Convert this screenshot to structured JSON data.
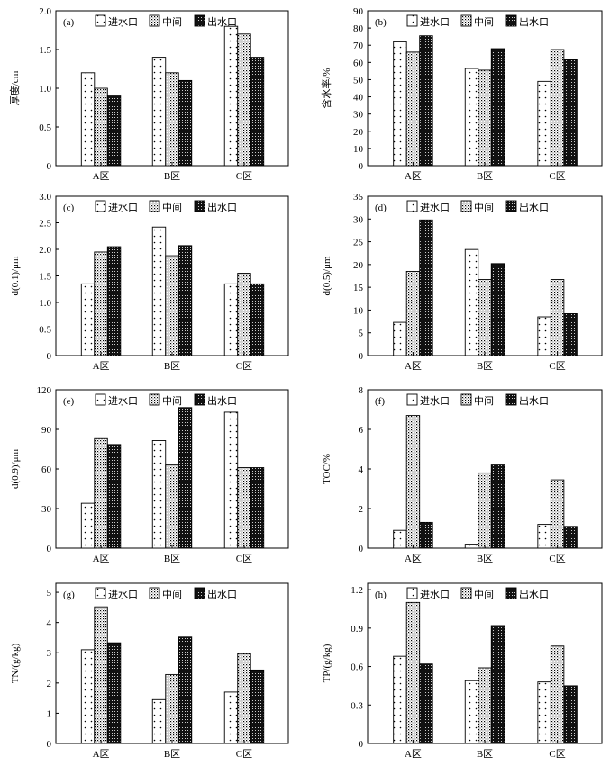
{
  "legend": [
    "进水口",
    "中间",
    "出水口"
  ],
  "chart_data": [
    {
      "type": "bar",
      "panel": "(a)",
      "ylabel": "厚度/cm",
      "categories": [
        "A区",
        "B区",
        "C区"
      ],
      "ylim": [
        0,
        2.0
      ],
      "yticks": [
        "0",
        "0.5",
        "1.0",
        "1.5",
        "2.0"
      ],
      "legend_position": "top",
      "series": [
        {
          "name": "进水口",
          "values": [
            1.2,
            1.4,
            1.8
          ]
        },
        {
          "name": "中间",
          "values": [
            1.0,
            1.2,
            1.7
          ]
        },
        {
          "name": "出水口",
          "values": [
            0.9,
            1.1,
            1.4
          ]
        }
      ]
    },
    {
      "type": "bar",
      "panel": "(b)",
      "ylabel": "含水率/%",
      "categories": [
        "A区",
        "B区",
        "C区"
      ],
      "ylim": [
        0,
        90
      ],
      "yticks": [
        "0",
        "10",
        "20",
        "30",
        "40",
        "50",
        "60",
        "70",
        "80",
        "90"
      ],
      "legend_position": "top-right",
      "series": [
        {
          "name": "进水口",
          "values": [
            72,
            56.5,
            49
          ]
        },
        {
          "name": "中间",
          "values": [
            66,
            55.5,
            67.5
          ]
        },
        {
          "name": "出水口",
          "values": [
            75.5,
            68,
            61.5
          ]
        }
      ]
    },
    {
      "type": "bar",
      "panel": "(c)",
      "ylabel": "d(0.1)/μm",
      "categories": [
        "A区",
        "B区",
        "C区"
      ],
      "ylim": [
        0,
        3.0
      ],
      "yticks": [
        "0",
        "0.5",
        "1.0",
        "1.5",
        "2.0",
        "2.5",
        "3.0"
      ],
      "legend_position": "top",
      "series": [
        {
          "name": "进水口",
          "values": [
            1.35,
            2.42,
            1.35
          ]
        },
        {
          "name": "中间",
          "values": [
            1.95,
            1.88,
            1.55
          ]
        },
        {
          "name": "出水口",
          "values": [
            2.05,
            2.07,
            1.35
          ]
        }
      ]
    },
    {
      "type": "bar",
      "panel": "(d)",
      "ylabel": "d(0.5)/μm",
      "categories": [
        "A区",
        "B区",
        "C区"
      ],
      "ylim": [
        0,
        35
      ],
      "yticks": [
        "0",
        "5",
        "10",
        "15",
        "20",
        "25",
        "30",
        "35"
      ],
      "legend_position": "top-right",
      "series": [
        {
          "name": "进水口",
          "values": [
            7.3,
            23.3,
            8.5
          ]
        },
        {
          "name": "中间",
          "values": [
            18.5,
            16.7,
            16.7
          ]
        },
        {
          "name": "出水口",
          "values": [
            29.8,
            20.2,
            9.2
          ]
        }
      ]
    },
    {
      "type": "bar",
      "panel": "(e)",
      "ylabel": "d(0.9)/μm",
      "categories": [
        "A区",
        "B区",
        "C区"
      ],
      "ylim": [
        0,
        120
      ],
      "yticks": [
        "0",
        "30",
        "60",
        "90",
        "120"
      ],
      "legend_position": "top",
      "series": [
        {
          "name": "进水口",
          "values": [
            34,
            81.5,
            103
          ]
        },
        {
          "name": "中间",
          "values": [
            83,
            63,
            61
          ]
        },
        {
          "name": "出水口",
          "values": [
            78.5,
            106.5,
            61
          ]
        }
      ]
    },
    {
      "type": "bar",
      "panel": "(f)",
      "ylabel": "TOC/%",
      "categories": [
        "A区",
        "B区",
        "C区"
      ],
      "ylim": [
        0,
        8
      ],
      "yticks": [
        "0",
        "2",
        "4",
        "6",
        "8"
      ],
      "legend_position": "top-right",
      "series": [
        {
          "name": "进水口",
          "values": [
            0.9,
            0.2,
            1.2
          ]
        },
        {
          "name": "中间",
          "values": [
            6.7,
            3.8,
            3.45
          ]
        },
        {
          "name": "出水口",
          "values": [
            1.3,
            4.2,
            1.1
          ]
        }
      ]
    },
    {
      "type": "bar",
      "panel": "(g)",
      "ylabel": "TN/(g/kg)",
      "categories": [
        "A区",
        "B区",
        "C区"
      ],
      "ylim": [
        0,
        5.3
      ],
      "yticks": [
        "0",
        "1",
        "2",
        "3",
        "4",
        "5"
      ],
      "legend_position": "top",
      "series": [
        {
          "name": "进水口",
          "values": [
            3.1,
            1.45,
            1.7
          ]
        },
        {
          "name": "中间",
          "values": [
            4.52,
            2.28,
            2.97
          ]
        },
        {
          "name": "出水口",
          "values": [
            3.33,
            3.52,
            2.43
          ]
        }
      ]
    },
    {
      "type": "bar",
      "panel": "(h)",
      "ylabel": "TP/(g/kg)",
      "categories": [
        "A区",
        "B区",
        "C区"
      ],
      "ylim": [
        0,
        1.25
      ],
      "yticks": [
        "0",
        "0.3",
        "0.6",
        "0.9",
        "1.2"
      ],
      "legend_position": "top-right",
      "series": [
        {
          "name": "进水口",
          "values": [
            0.68,
            0.49,
            0.48
          ]
        },
        {
          "name": "中间",
          "values": [
            1.1,
            0.59,
            0.76
          ]
        },
        {
          "name": "出水口",
          "values": [
            0.62,
            0.92,
            0.45
          ]
        }
      ]
    }
  ]
}
